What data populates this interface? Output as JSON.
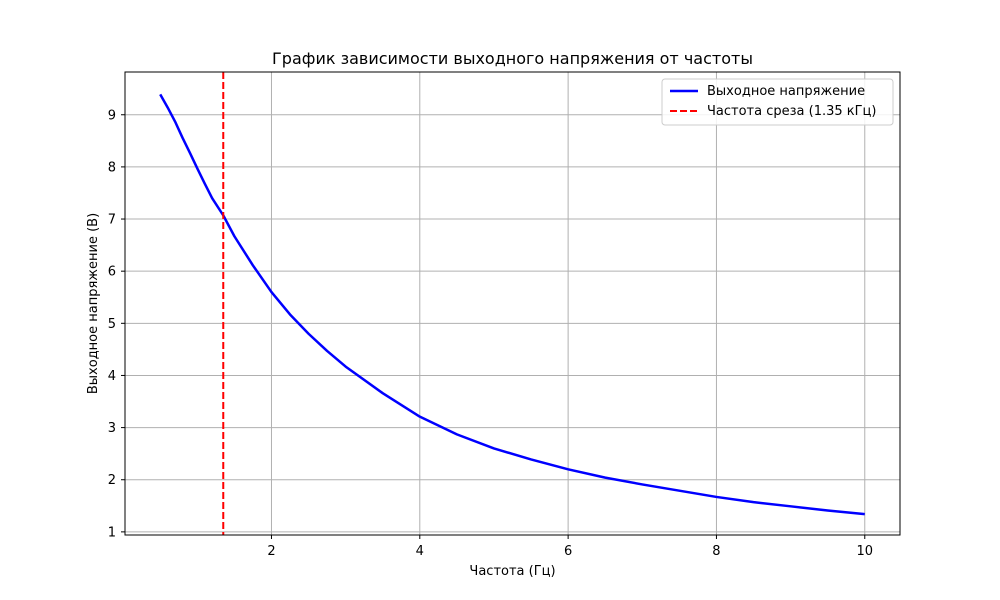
{
  "chart_data": {
    "type": "line",
    "title": "График зависимости выходного напряжения от частоты",
    "xlabel": "Частота (Гц)",
    "ylabel": "Выходное напряжение (В)",
    "xlim": [
      0.025,
      10.475
    ],
    "ylim": [
      0.94,
      9.82
    ],
    "x_ticks": [
      2,
      4,
      6,
      8,
      10
    ],
    "y_ticks": [
      1,
      2,
      3,
      4,
      5,
      6,
      7,
      8,
      9
    ],
    "grid": true,
    "legend_position": "top-right",
    "series": [
      {
        "name": "Выходное напряжение",
        "color": "#0000ff",
        "style": "solid",
        "x": [
          0.5,
          0.6,
          0.7,
          0.8,
          0.9,
          1.0,
          1.1,
          1.2,
          1.35,
          1.5,
          1.75,
          2.0,
          2.25,
          2.5,
          2.75,
          3.0,
          3.5,
          4.0,
          4.5,
          5.0,
          5.5,
          6.0,
          6.5,
          7.0,
          7.5,
          8.0,
          8.5,
          9.0,
          9.5,
          10.0
        ],
        "y": [
          9.39,
          9.14,
          8.87,
          8.56,
          8.27,
          7.97,
          7.68,
          7.4,
          7.07,
          6.67,
          6.11,
          5.6,
          5.17,
          4.8,
          4.47,
          4.17,
          3.66,
          3.21,
          2.87,
          2.6,
          2.39,
          2.2,
          2.04,
          1.91,
          1.79,
          1.67,
          1.57,
          1.49,
          1.41,
          1.34
        ]
      },
      {
        "name": "Частота среза (1.35 кГц)",
        "color": "#ff0000",
        "style": "dashed",
        "vertical_x": 1.35
      }
    ]
  }
}
